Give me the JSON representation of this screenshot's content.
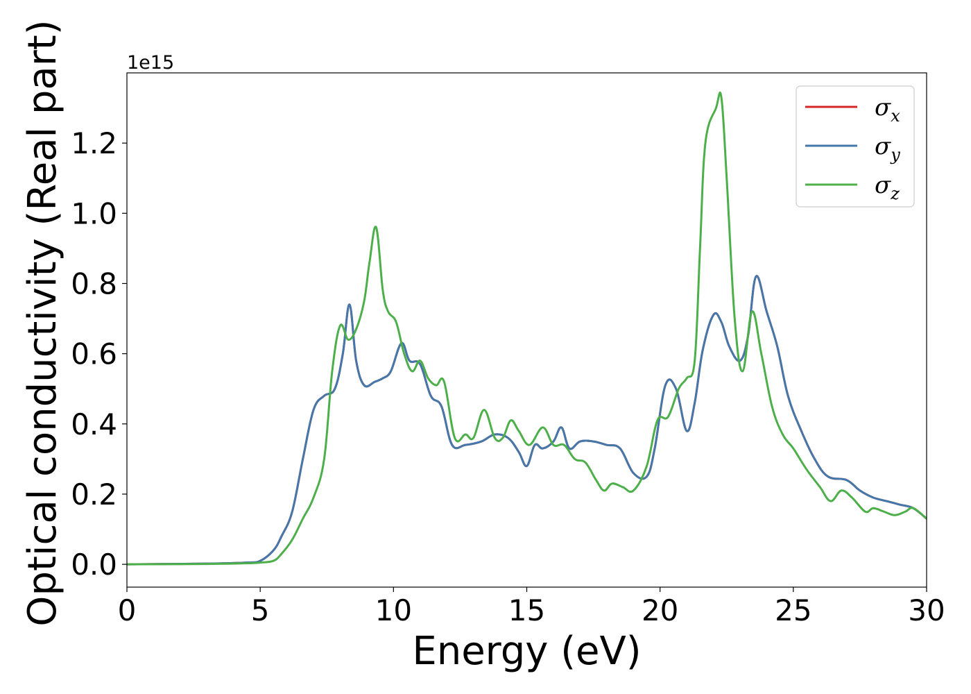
{
  "chart_data": {
    "type": "line",
    "title": "",
    "xlabel": "Energy (eV)",
    "ylabel": "Optical conductivity (Real part)",
    "y_offset_label": "1e15",
    "y_multiplier": 1000000000000000.0,
    "xlim": [
      0,
      30
    ],
    "ylim": [
      -0.065,
      1.4
    ],
    "xticks": [
      0,
      5,
      10,
      15,
      20,
      25,
      30
    ],
    "xtick_labels": [
      "0",
      "5",
      "10",
      "15",
      "20",
      "25",
      "30"
    ],
    "yticks": [
      0.0,
      0.2,
      0.4,
      0.6,
      0.8,
      1.0,
      1.2
    ],
    "ytick_labels": [
      "0.0",
      "0.2",
      "0.4",
      "0.6",
      "0.8",
      "1.0",
      "1.2"
    ],
    "grid": false,
    "legend_position": "top-right",
    "series": [
      {
        "name": "σx",
        "symbol": "σ",
        "subscript": "x",
        "color": "#d62728",
        "x": [
          0,
          3,
          4.5,
          5.0,
          5.5,
          5.8,
          6.2,
          6.6,
          7.0,
          7.4,
          7.8,
          8.1,
          8.35,
          8.6,
          8.9,
          9.3,
          9.6,
          9.9,
          10.3,
          10.6,
          11.0,
          11.4,
          11.8,
          12.2,
          12.7,
          13.3,
          13.8,
          14.3,
          14.7,
          15.0,
          15.3,
          15.6,
          16.0,
          16.3,
          16.6,
          17.0,
          17.5,
          18.0,
          18.5,
          19.0,
          19.5,
          19.8,
          20.2,
          20.6,
          21.0,
          21.3,
          21.6,
          22.0,
          22.3,
          22.6,
          23.0,
          23.3,
          23.6,
          24.0,
          24.4,
          24.8,
          25.3,
          25.8,
          26.3,
          27.0,
          27.5,
          28.0,
          28.5,
          29.0,
          29.5,
          30.0
        ],
        "values": [
          0.0,
          0.002,
          0.005,
          0.01,
          0.04,
          0.08,
          0.15,
          0.3,
          0.44,
          0.48,
          0.5,
          0.6,
          0.74,
          0.58,
          0.51,
          0.52,
          0.53,
          0.55,
          0.63,
          0.58,
          0.57,
          0.48,
          0.45,
          0.34,
          0.34,
          0.35,
          0.37,
          0.36,
          0.32,
          0.28,
          0.34,
          0.33,
          0.35,
          0.39,
          0.33,
          0.35,
          0.35,
          0.34,
          0.33,
          0.26,
          0.25,
          0.33,
          0.51,
          0.5,
          0.38,
          0.46,
          0.61,
          0.71,
          0.69,
          0.62,
          0.58,
          0.65,
          0.82,
          0.72,
          0.62,
          0.48,
          0.38,
          0.3,
          0.25,
          0.24,
          0.21,
          0.19,
          0.18,
          0.17,
          0.16,
          0.13
        ]
      },
      {
        "name": "σy",
        "symbol": "σ",
        "subscript": "y",
        "color": "#4477aa",
        "x": [
          0,
          3,
          4.5,
          5.0,
          5.5,
          5.8,
          6.2,
          6.6,
          7.0,
          7.4,
          7.8,
          8.1,
          8.35,
          8.6,
          8.9,
          9.3,
          9.6,
          9.9,
          10.3,
          10.6,
          11.0,
          11.4,
          11.8,
          12.2,
          12.7,
          13.3,
          13.8,
          14.3,
          14.7,
          15.0,
          15.3,
          15.6,
          16.0,
          16.3,
          16.6,
          17.0,
          17.5,
          18.0,
          18.5,
          19.0,
          19.5,
          19.8,
          20.2,
          20.6,
          21.0,
          21.3,
          21.6,
          22.0,
          22.3,
          22.6,
          23.0,
          23.3,
          23.6,
          24.0,
          24.4,
          24.8,
          25.3,
          25.8,
          26.3,
          27.0,
          27.5,
          28.0,
          28.5,
          29.0,
          29.5,
          30.0
        ],
        "values": [
          0.0,
          0.002,
          0.005,
          0.01,
          0.04,
          0.08,
          0.15,
          0.3,
          0.44,
          0.48,
          0.5,
          0.6,
          0.74,
          0.58,
          0.51,
          0.52,
          0.53,
          0.55,
          0.63,
          0.58,
          0.57,
          0.48,
          0.45,
          0.34,
          0.34,
          0.35,
          0.37,
          0.36,
          0.32,
          0.28,
          0.34,
          0.33,
          0.35,
          0.39,
          0.33,
          0.35,
          0.35,
          0.34,
          0.33,
          0.26,
          0.25,
          0.33,
          0.51,
          0.5,
          0.38,
          0.46,
          0.61,
          0.71,
          0.69,
          0.62,
          0.58,
          0.65,
          0.82,
          0.72,
          0.62,
          0.48,
          0.38,
          0.3,
          0.25,
          0.24,
          0.21,
          0.19,
          0.18,
          0.17,
          0.16,
          0.13
        ]
      },
      {
        "name": "σz",
        "symbol": "σ",
        "subscript": "z",
        "color": "#4daf4a",
        "x": [
          0,
          3,
          4.5,
          5.0,
          5.5,
          5.8,
          6.2,
          6.6,
          7.0,
          7.4,
          7.7,
          8.0,
          8.3,
          8.6,
          8.9,
          9.1,
          9.35,
          9.6,
          9.8,
          10.1,
          10.4,
          10.7,
          11.0,
          11.3,
          11.6,
          11.9,
          12.3,
          12.7,
          13.0,
          13.4,
          13.8,
          14.1,
          14.4,
          14.7,
          15.1,
          15.6,
          16.0,
          16.4,
          16.8,
          17.2,
          17.6,
          17.9,
          18.2,
          18.6,
          19.0,
          19.5,
          19.9,
          20.3,
          20.7,
          21.0,
          21.3,
          21.5,
          21.7,
          22.1,
          22.3,
          22.5,
          22.8,
          23.1,
          23.45,
          23.8,
          24.2,
          24.6,
          25.0,
          25.5,
          26.0,
          26.4,
          26.8,
          27.2,
          27.7,
          28.0,
          28.4,
          28.8,
          29.2,
          29.5,
          30.0
        ],
        "values": [
          0.0,
          0.001,
          0.003,
          0.005,
          0.01,
          0.03,
          0.07,
          0.13,
          0.19,
          0.3,
          0.55,
          0.68,
          0.64,
          0.67,
          0.75,
          0.86,
          0.96,
          0.78,
          0.72,
          0.69,
          0.6,
          0.55,
          0.58,
          0.53,
          0.51,
          0.52,
          0.36,
          0.37,
          0.36,
          0.44,
          0.36,
          0.36,
          0.41,
          0.38,
          0.34,
          0.39,
          0.34,
          0.34,
          0.3,
          0.29,
          0.24,
          0.21,
          0.23,
          0.22,
          0.21,
          0.28,
          0.41,
          0.42,
          0.5,
          0.53,
          0.58,
          0.9,
          1.2,
          1.3,
          1.33,
          1.1,
          0.7,
          0.55,
          0.72,
          0.6,
          0.45,
          0.37,
          0.33,
          0.27,
          0.22,
          0.18,
          0.21,
          0.19,
          0.15,
          0.16,
          0.15,
          0.14,
          0.15,
          0.16,
          0.13
        ]
      }
    ]
  }
}
